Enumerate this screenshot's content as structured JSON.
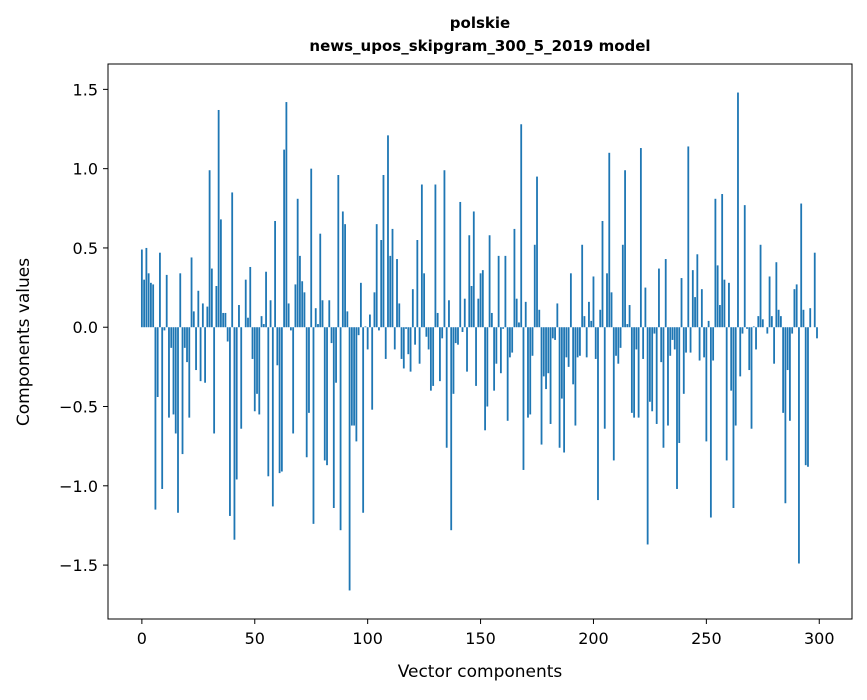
{
  "chart_data": {
    "type": "bar",
    "title": [
      "polskie",
      "news_upos_skipgram_300_5_2019 model"
    ],
    "xlabel": "Vector components",
    "ylabel": "Components values",
    "xlim": [
      -15,
      314.5
    ],
    "ylim": [
      -1.84,
      1.66
    ],
    "xticks": [
      0,
      50,
      100,
      150,
      200,
      250,
      300
    ],
    "xtick_labels": [
      "0",
      "50",
      "100",
      "150",
      "200",
      "250",
      "300"
    ],
    "yticks": [
      -1.5,
      -1.0,
      -0.5,
      0.0,
      0.5,
      1.0,
      1.5
    ],
    "ytick_labels": [
      "−1.5",
      "−1.0",
      "−0.5",
      "0.0",
      "0.5",
      "1.0",
      "1.5"
    ],
    "grid": false,
    "bar_color": "#1f77b4",
    "values": [
      0.49,
      0.3,
      0.5,
      0.34,
      0.28,
      0.27,
      -1.15,
      -0.44,
      0.47,
      -1.02,
      -0.02,
      0.33,
      -0.57,
      -0.13,
      -0.55,
      -0.67,
      -1.17,
      0.34,
      -0.8,
      -0.13,
      -0.22,
      -0.57,
      0.44,
      0.1,
      -0.27,
      0.23,
      -0.34,
      0.15,
      -0.35,
      0.13,
      0.99,
      0.37,
      -0.67,
      0.26,
      1.37,
      0.68,
      0.09,
      0.09,
      -0.09,
      -1.19,
      0.85,
      -1.34,
      -0.96,
      0.14,
      -0.64,
      0.0,
      0.3,
      0.06,
      0.38,
      -0.2,
      -0.53,
      -0.42,
      -0.55,
      0.07,
      0.02,
      0.35,
      -0.94,
      0.17,
      -1.13,
      0.67,
      -0.24,
      -0.92,
      -0.91,
      1.12,
      1.42,
      0.15,
      -0.02,
      -0.67,
      0.27,
      0.81,
      0.45,
      0.29,
      0.22,
      -0.82,
      -0.54,
      1.0,
      -1.24,
      0.12,
      0.02,
      0.59,
      0.17,
      -0.84,
      -0.87,
      0.17,
      -0.1,
      -1.14,
      -0.35,
      0.96,
      -1.28,
      0.73,
      0.65,
      0.1,
      -1.66,
      -0.62,
      -0.62,
      -0.72,
      -0.05,
      0.28,
      -1.17,
      0.005,
      -0.14,
      0.08,
      -0.52,
      0.22,
      0.65,
      -0.02,
      0.55,
      0.96,
      -0.2,
      1.21,
      0.45,
      0.62,
      -0.14,
      0.43,
      0.15,
      -0.2,
      -0.26,
      -0.01,
      -0.17,
      -0.28,
      0.24,
      -0.11,
      0.55,
      -0.23,
      0.9,
      0.34,
      -0.06,
      -0.14,
      -0.4,
      -0.37,
      0.9,
      0.09,
      -0.34,
      -0.07,
      0.99,
      -0.76,
      0.17,
      -1.28,
      -0.42,
      -0.1,
      -0.11,
      0.79,
      -0.03,
      0.18,
      -0.28,
      0.58,
      0.26,
      0.73,
      -0.37,
      0.18,
      0.34,
      0.36,
      -0.65,
      -0.5,
      0.58,
      0.09,
      -0.4,
      -0.23,
      0.45,
      -0.29,
      -0.01,
      0.45,
      -0.59,
      -0.19,
      -0.16,
      0.62,
      0.18,
      0.03,
      1.28,
      -0.9,
      0.16,
      -0.57,
      -0.55,
      -0.18,
      0.52,
      0.95,
      0.11,
      -0.74,
      -0.31,
      -0.39,
      -0.29,
      -0.61,
      -0.07,
      -0.08,
      0.15,
      -0.76,
      -0.45,
      -0.79,
      -0.19,
      -0.25,
      0.34,
      -0.36,
      -0.62,
      -0.19,
      -0.18,
      0.52,
      0.07,
      -0.19,
      0.16,
      0.04,
      0.32,
      -0.2,
      -1.09,
      0.11,
      0.67,
      -0.64,
      0.34,
      1.1,
      0.22,
      -0.84,
      -0.18,
      -0.23,
      -0.13,
      0.52,
      0.99,
      0.02,
      0.14,
      -0.54,
      -0.57,
      -0.14,
      -0.57,
      1.13,
      -0.2,
      0.25,
      -1.37,
      -0.47,
      -0.53,
      -0.04,
      -0.61,
      0.37,
      -0.22,
      -0.76,
      0.43,
      -0.62,
      -0.18,
      -0.08,
      -0.14,
      -1.02,
      -0.73,
      0.31,
      -0.42,
      -0.16,
      1.14,
      -0.16,
      0.36,
      0.19,
      0.46,
      -0.21,
      0.24,
      -0.19,
      -0.72,
      0.04,
      -1.2,
      -0.21,
      0.81,
      0.39,
      0.14,
      0.84,
      0.3,
      -0.84,
      0.28,
      -0.4,
      -1.14,
      -0.62,
      1.48,
      -0.31,
      -0.04,
      0.77,
      -0.01,
      -0.27,
      -0.64,
      0.005,
      -0.14,
      0.07,
      0.52,
      0.05,
      0.0,
      -0.04,
      0.32,
      0.07,
      -0.23,
      0.41,
      0.11,
      0.07,
      -0.54,
      -1.11,
      -0.27,
      -0.59,
      -0.04,
      0.24,
      0.27,
      -1.49,
      0.78,
      0.11,
      -0.87,
      -0.88,
      0.12,
      0.0,
      0.47,
      -0.07
    ]
  }
}
